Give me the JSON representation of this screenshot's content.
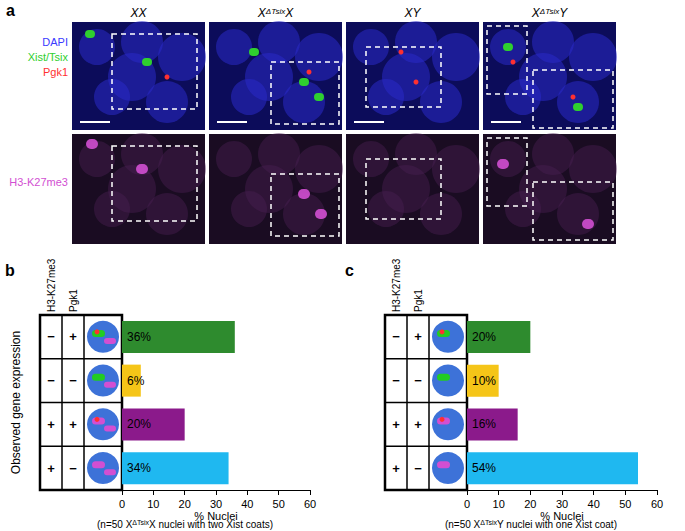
{
  "panel_a": {
    "label": "a",
    "columns": [
      [
        {
          "text": "XX"
        }
      ],
      [
        {
          "text": "X"
        },
        {
          "text": "ΔTsix",
          "sup": true
        },
        {
          "text": "X"
        }
      ],
      [
        {
          "text": "XY"
        }
      ],
      [
        {
          "text": "X"
        },
        {
          "text": "ΔTsix",
          "sup": true
        },
        {
          "text": "Y"
        }
      ]
    ],
    "rows": [
      {
        "channels": [
          {
            "name": "DAPI",
            "color": "#3b3bff"
          },
          {
            "name": "Xist/Tsix",
            "color": "#2fcf2f"
          },
          {
            "name": "Pgk1",
            "color": "#ff3030"
          }
        ]
      },
      {
        "channels": [
          {
            "name": "H3-K27me3",
            "color": "#d24fd2"
          }
        ]
      }
    ]
  },
  "chart_data": [
    {
      "type": "bar",
      "panel": "b",
      "orientation": "horizontal",
      "categories": [
        null,
        null,
        null,
        null
      ],
      "values": [
        36,
        6,
        20,
        34
      ],
      "value_labels": [
        "36%",
        "6%",
        "20%",
        "34%"
      ],
      "colors": [
        "#2e8b2e",
        "#f5c518",
        "#8b1a8b",
        "#1fb8f0"
      ],
      "data_labels": true,
      "tick_labels": "x",
      "xlim": [
        0,
        60
      ],
      "xticks": [
        0,
        10,
        20,
        30,
        40,
        50,
        60
      ],
      "x_label": "% Nuclei",
      "y_label": "Observed gene expression",
      "table": {
        "headers": [
          "H3-K27me3",
          "Pgk1"
        ],
        "rows": [
          [
            "−",
            "+"
          ],
          [
            "−",
            "−"
          ],
          [
            "+",
            "+"
          ],
          [
            "+",
            "−"
          ]
        ]
      },
      "note": [
        {
          "text": "(n=50 X"
        },
        {
          "text": "ΔTsix",
          "sup": true
        },
        {
          "text": "X nuclei with two Xist coats)"
        }
      ]
    },
    {
      "type": "bar",
      "panel": "c",
      "orientation": "horizontal",
      "categories": [
        null,
        null,
        null,
        null
      ],
      "values": [
        20,
        10,
        16,
        54
      ],
      "value_labels": [
        "20%",
        "10%",
        "16%",
        "54%"
      ],
      "colors": [
        "#2e8b2e",
        "#f5c518",
        "#8b1a8b",
        "#1fb8f0"
      ],
      "data_labels": true,
      "tick_labels": "x",
      "xlim": [
        0,
        60
      ],
      "xticks": [
        0,
        10,
        20,
        30,
        40,
        50,
        60
      ],
      "x_label": "% Nuclei",
      "table": {
        "headers": [
          "H3-K27me3",
          "Pgk1"
        ],
        "rows": [
          [
            "−",
            "+"
          ],
          [
            "−",
            "−"
          ],
          [
            "+",
            "+"
          ],
          [
            "+",
            "−"
          ]
        ]
      },
      "note": [
        {
          "text": "(n=50 X"
        },
        {
          "text": "ΔTsix",
          "sup": true
        },
        {
          "text": "Y nuclei with one Xist coat)"
        }
      ]
    }
  ]
}
